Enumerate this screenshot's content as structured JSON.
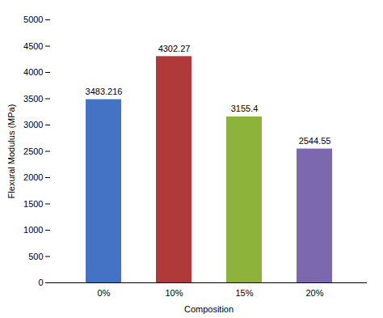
{
  "chart_data": {
    "type": "bar",
    "categories": [
      "0%",
      "10%",
      "15%",
      "20%"
    ],
    "values": [
      3483.216,
      4302.27,
      3155.4,
      2544.55
    ],
    "colors": [
      "#4472C4",
      "#B03A3A",
      "#8DB33A",
      "#7B68AE"
    ],
    "xlabel": "Composition",
    "ylabel": "Flexural Modulus (MPa)",
    "ylim": [
      0,
      5000
    ],
    "yticks": [
      0,
      500,
      1000,
      1500,
      2000,
      2500,
      3000,
      3500,
      4000,
      4500,
      5000
    ],
    "grid": false,
    "data_labels": true
  }
}
